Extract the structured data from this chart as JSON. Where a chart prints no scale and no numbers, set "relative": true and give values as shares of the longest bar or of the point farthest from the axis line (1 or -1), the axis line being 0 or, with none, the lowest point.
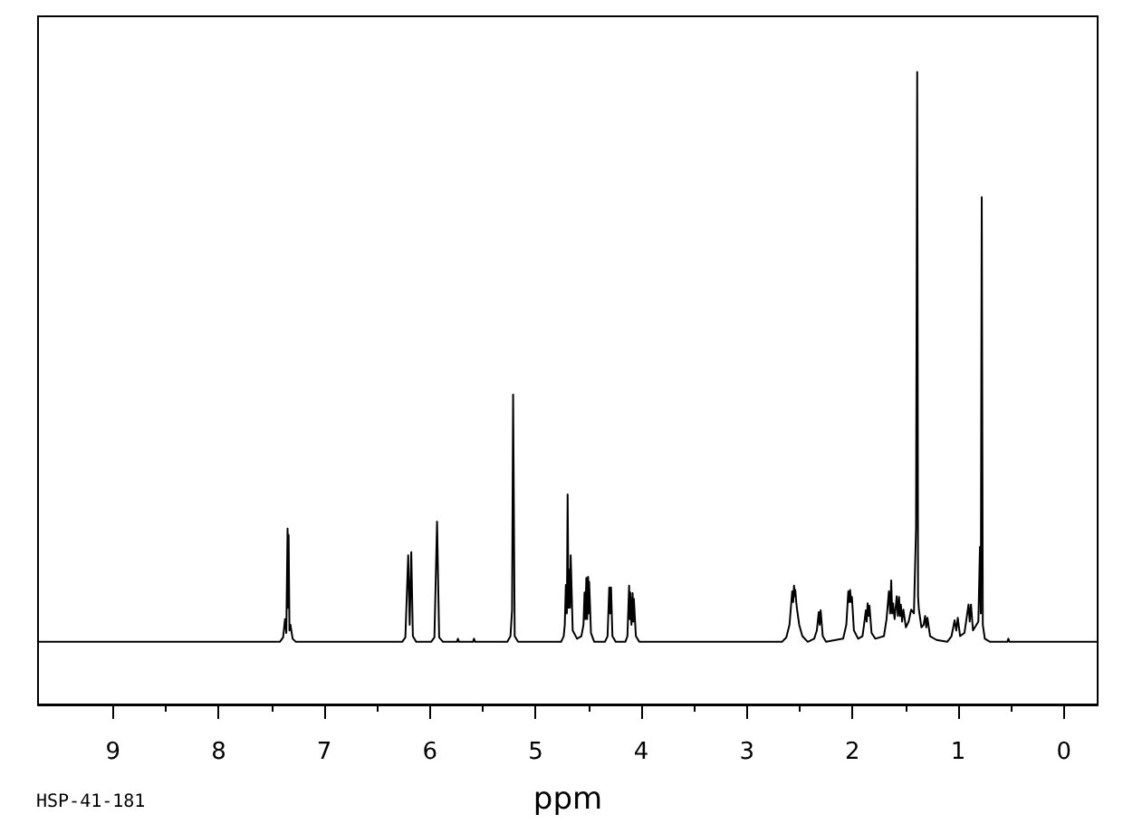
{
  "chart_data": {
    "type": "line",
    "relative": true,
    "xlabel": "ppm",
    "annotations": [
      "HSP-41-181"
    ],
    "xlim": [
      9.71,
      -0.32
    ],
    "xticks": [
      9,
      {
        "value": 8.5,
        "label": null
      },
      8,
      {
        "value": 7.5,
        "label": null
      },
      7,
      {
        "value": 6.5,
        "label": null
      },
      6,
      {
        "value": 5.5,
        "label": null
      },
      5,
      {
        "value": 4.5,
        "label": null
      },
      4,
      {
        "value": 3.5,
        "label": null
      },
      3,
      {
        "value": 2.5,
        "label": null
      },
      2,
      {
        "value": 1.5,
        "label": null
      },
      1,
      {
        "value": 0.5,
        "label": null
      },
      0
    ],
    "marker": "none",
    "series": [
      {
        "color": "#000000",
        "x": [
          9.71,
          7.421,
          7.39,
          7.372,
          7.36,
          7.348,
          7.343,
          7.338,
          7.33,
          7.321,
          7.3,
          7.27,
          6.263,
          6.233,
          6.206,
          6.192,
          6.177,
          6.162,
          6.131,
          5.989,
          5.958,
          5.933,
          5.913,
          5.877,
          5.745,
          5.735,
          5.725,
          5.593,
          5.583,
          5.573,
          5.268,
          5.238,
          5.223,
          5.213,
          5.198,
          5.166,
          4.759,
          4.734,
          4.724,
          4.714,
          4.704,
          4.697,
          4.689,
          4.68,
          4.674,
          4.668,
          4.649,
          4.608,
          4.567,
          4.547,
          4.537,
          4.529,
          4.52,
          4.512,
          4.503,
          4.498,
          4.493,
          4.476,
          4.445,
          4.344,
          4.319,
          4.303,
          4.295,
          4.286,
          4.273,
          4.242,
          4.151,
          4.131,
          4.115,
          4.109,
          4.104,
          4.093,
          4.082,
          4.076,
          4.07,
          4.051,
          4.019,
          2.668,
          2.627,
          2.597,
          2.571,
          2.562,
          2.554,
          2.548,
          2.542,
          2.533,
          2.525,
          2.505,
          2.475,
          2.424,
          2.363,
          2.338,
          2.32,
          2.311,
          2.302,
          2.282,
          2.251,
          2.089,
          2.059,
          2.04,
          2.031,
          2.023,
          2.014,
          2.006,
          1.987,
          1.947,
          1.906,
          1.891,
          1.874,
          1.866,
          1.857,
          1.848,
          1.84,
          1.82,
          1.784,
          1.703,
          1.678,
          1.656,
          1.644,
          1.634,
          1.625,
          1.617,
          1.602,
          1.582,
          1.571,
          1.56,
          1.551,
          1.543,
          1.531,
          1.519,
          1.495,
          1.469,
          1.445,
          1.419,
          1.399,
          1.388,
          1.38,
          1.372,
          1.348,
          1.327,
          1.313,
          1.302,
          1.291,
          1.266,
          1.205,
          1.104,
          1.063,
          1.034,
          1.018,
          1.004,
          0.982,
          0.941,
          0.902,
          0.891,
          0.879,
          0.86,
          0.809,
          0.794,
          0.786,
          0.777,
          0.767,
          0.748,
          0.698,
          0.535,
          0.525,
          0.515,
          -0.32
        ],
        "values": [
          0.099,
          0.099,
          0.106,
          0.135,
          0.113,
          0.278,
          0.153,
          0.268,
          0.117,
          0.126,
          0.104,
          0.099,
          0.099,
          0.106,
          0.236,
          0.126,
          0.241,
          0.108,
          0.099,
          0.099,
          0.106,
          0.289,
          0.106,
          0.099,
          0.099,
          0.104,
          0.099,
          0.099,
          0.104,
          0.099,
          0.099,
          0.108,
          0.149,
          0.49,
          0.108,
          0.099,
          0.099,
          0.108,
          0.126,
          0.189,
          0.144,
          0.332,
          0.153,
          0.213,
          0.153,
          0.236,
          0.117,
          0.104,
          0.108,
          0.126,
          0.177,
          0.135,
          0.2,
          0.135,
          0.202,
          0.144,
          0.194,
          0.113,
          0.099,
          0.099,
          0.108,
          0.185,
          0.144,
          0.185,
          0.108,
          0.099,
          0.099,
          0.108,
          0.188,
          0.135,
          0.177,
          0.126,
          0.176,
          0.131,
          0.167,
          0.108,
          0.099,
          0.099,
          0.106,
          0.126,
          0.179,
          0.162,
          0.188,
          0.171,
          0.181,
          0.162,
          0.15,
          0.126,
          0.108,
          0.099,
          0.104,
          0.117,
          0.146,
          0.126,
          0.149,
          0.108,
          0.099,
          0.104,
          0.126,
          0.179,
          0.162,
          0.181,
          0.162,
          0.17,
          0.117,
          0.104,
          0.108,
          0.126,
          0.149,
          0.131,
          0.16,
          0.14,
          0.156,
          0.113,
          0.104,
          0.108,
          0.135,
          0.179,
          0.144,
          0.196,
          0.144,
          0.16,
          0.135,
          0.171,
          0.14,
          0.17,
          0.14,
          0.158,
          0.131,
          0.15,
          0.122,
          0.131,
          0.15,
          0.144,
          0.279,
          1,
          0.171,
          0.15,
          0.122,
          0.126,
          0.14,
          0.122,
          0.137,
          0.108,
          0.102,
          0.099,
          0.108,
          0.133,
          0.117,
          0.137,
          0.108,
          0.113,
          0.158,
          0.131,
          0.158,
          0.117,
          0.131,
          0.249,
          0.144,
          0.802,
          0.126,
          0.104,
          0.099,
          0.099,
          0.104,
          0.099,
          0.099
        ]
      }
    ]
  }
}
